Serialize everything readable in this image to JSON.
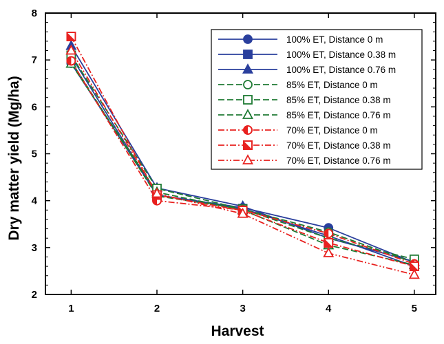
{
  "chart_data": {
    "type": "line",
    "xlabel": "Harvest",
    "ylabel": "Dry matter yield (Mg/ha)",
    "x": [
      1,
      2,
      3,
      4,
      5
    ],
    "xlim": [
      0.7,
      5.25
    ],
    "ylim": [
      2,
      8
    ],
    "xticks": [
      "1",
      "2",
      "3",
      "4",
      "5"
    ],
    "yticks": [
      "2",
      "3",
      "4",
      "5",
      "6",
      "7",
      "8"
    ],
    "grid": false,
    "legend_position": "top-right",
    "series": [
      {
        "name": "100% ET, Distance 0 m",
        "values": [
          6.93,
          4.12,
          3.85,
          3.42,
          2.68
        ],
        "color": "#2a3f9d",
        "line": "solid",
        "marker": "circle",
        "fill": "full"
      },
      {
        "name": "100% ET, Distance 0.38 m",
        "values": [
          7.08,
          4.12,
          3.83,
          3.25,
          2.6
        ],
        "color": "#2a3f9d",
        "line": "solid",
        "marker": "square",
        "fill": "full"
      },
      {
        "name": "100% ET, Distance 0.76 m",
        "values": [
          7.3,
          4.27,
          3.88,
          3.2,
          2.7
        ],
        "color": "#2a3f9d",
        "line": "solid",
        "marker": "triangle",
        "fill": "full"
      },
      {
        "name": "85% ET, Distance 0 m",
        "values": [
          6.97,
          4.1,
          3.82,
          3.33,
          2.68
        ],
        "color": "#1e7a33",
        "line": "dashed",
        "marker": "circle",
        "fill": "none"
      },
      {
        "name": "85% ET, Distance 0.38 m",
        "values": [
          7.1,
          4.26,
          3.82,
          3.2,
          2.75
        ],
        "color": "#1e7a33",
        "line": "dashed",
        "marker": "square",
        "fill": "none"
      },
      {
        "name": "85% ET, Distance 0.76 m",
        "values": [
          6.92,
          4.18,
          3.8,
          3.05,
          2.63
        ],
        "color": "#1e7a33",
        "line": "dashed",
        "marker": "triangle",
        "fill": "none"
      },
      {
        "name": "70% ET, Distance 0 m",
        "values": [
          6.98,
          4.0,
          3.8,
          3.3,
          2.65
        ],
        "color": "#e8211f",
        "line": "dashdot",
        "marker": "circle",
        "fill": "half"
      },
      {
        "name": "70% ET, Distance 0.38 m",
        "values": [
          7.5,
          4.12,
          3.79,
          3.1,
          2.6
        ],
        "color": "#e8211f",
        "line": "dashdot",
        "marker": "square",
        "fill": "half"
      },
      {
        "name": "70% ET, Distance 0.76 m",
        "values": [
          7.2,
          4.15,
          3.72,
          2.88,
          2.42
        ],
        "color": "#e8211f",
        "line": "dashdotdot",
        "marker": "triangle",
        "fill": "none"
      }
    ]
  }
}
